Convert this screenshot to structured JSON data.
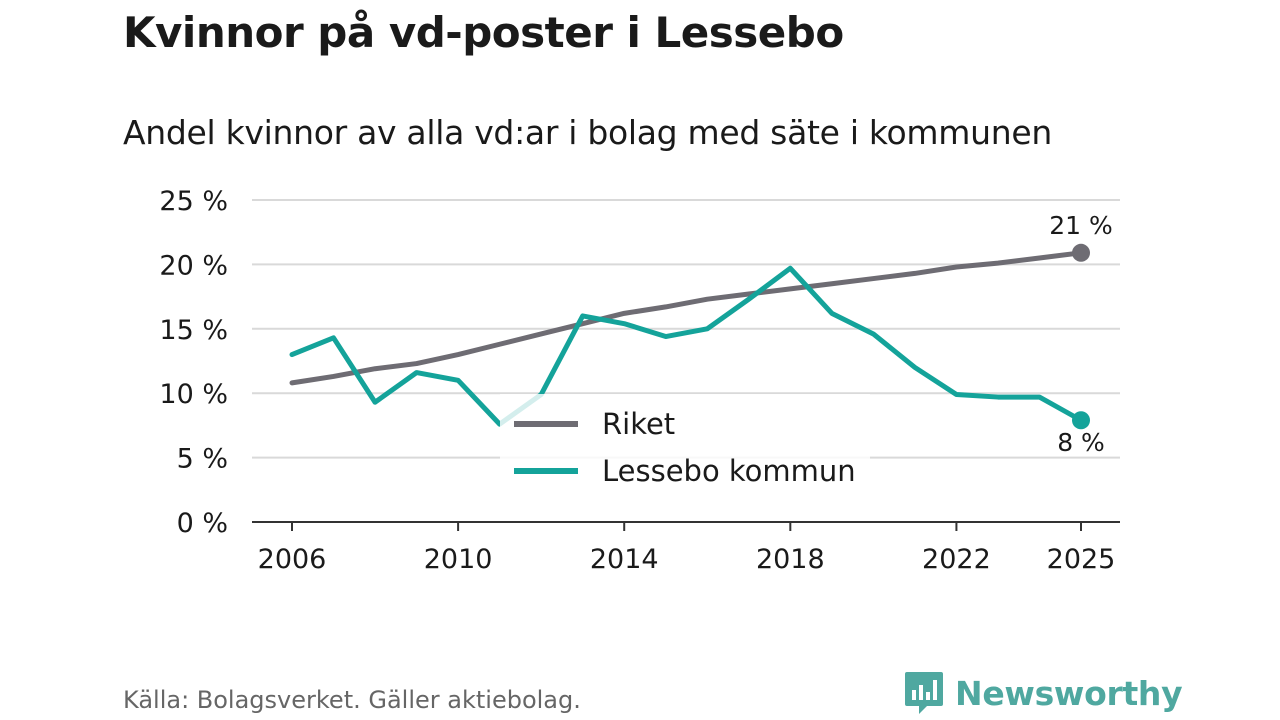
{
  "header": {
    "title": "Kvinnor på vd-poster i Lessebo",
    "subtitle": "Andel kvinnor av alla vd:ar i bolag med säte i kommunen"
  },
  "footer": {
    "source": "Källa: Bolagsverket. Gäller aktiebolag.",
    "brand": "Newsworthy",
    "brand_icon": "newsworthy-logo-icon"
  },
  "colors": {
    "riket": "#6e6c73",
    "lessebo": "#14a39a",
    "grid": "#d9d9d9",
    "axis": "#333333",
    "brand": "#4fa8a0"
  },
  "chart_data": {
    "type": "line",
    "title": "Kvinnor på vd-poster i Lessebo",
    "subtitle": "Andel kvinnor av alla vd:ar i bolag med säte i kommunen",
    "xlabel": "",
    "ylabel": "",
    "x": [
      2006,
      2007,
      2008,
      2009,
      2010,
      2011,
      2012,
      2013,
      2014,
      2015,
      2016,
      2017,
      2018,
      2019,
      2020,
      2021,
      2022,
      2023,
      2024,
      2025
    ],
    "x_ticks": [
      2006,
      2010,
      2014,
      2018,
      2022,
      2025
    ],
    "y_ticks": [
      0,
      5,
      10,
      15,
      20,
      25
    ],
    "y_tick_labels": [
      "0 %",
      "5 %",
      "10 %",
      "15 %",
      "20 %",
      "25 %"
    ],
    "ylim": [
      0,
      25
    ],
    "grid": true,
    "legend_position": "center",
    "series": [
      {
        "name": "Riket",
        "color": "#6e6c73",
        "values": [
          10.8,
          11.3,
          11.9,
          12.3,
          13.0,
          13.8,
          14.6,
          15.4,
          16.2,
          16.7,
          17.3,
          17.7,
          18.1,
          18.5,
          18.9,
          19.3,
          19.8,
          20.1,
          20.5,
          20.9
        ],
        "end_label": "21 %"
      },
      {
        "name": "Lessebo kommun",
        "color": "#14a39a",
        "values": [
          13.0,
          14.3,
          9.3,
          11.6,
          11.0,
          7.6,
          9.9,
          16.0,
          15.4,
          14.4,
          15.0,
          17.3,
          19.7,
          16.2,
          14.6,
          12.0,
          9.9,
          9.7,
          9.7,
          7.9
        ],
        "end_label": "8 %"
      }
    ]
  }
}
